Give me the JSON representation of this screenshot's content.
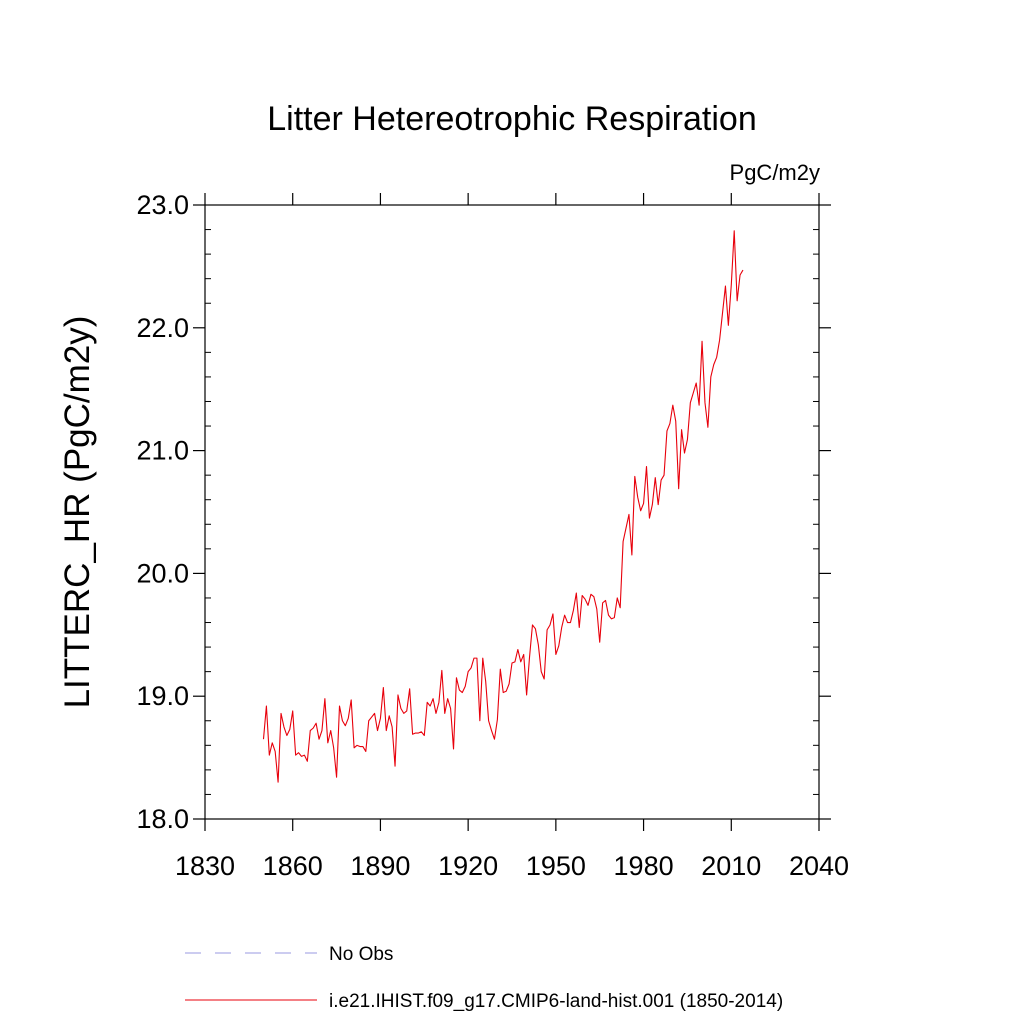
{
  "chart_data": {
    "type": "line",
    "title": "Litter Hetereotrophic Respiration",
    "units": "PgC/m2y",
    "xlabel": "",
    "ylabel": "LITTERC_HR  (PgC/m2y)",
    "xlim": [
      1830,
      2040
    ],
    "ylim": [
      18.0,
      23.0
    ],
    "xticks": [
      1830,
      1860,
      1890,
      1920,
      1950,
      1980,
      2010,
      2040
    ],
    "xtick_labels": [
      "1830",
      "1860",
      "1890",
      "1920",
      "1950",
      "1980",
      "2010",
      "2040"
    ],
    "yticks": [
      18.0,
      19.0,
      20.0,
      21.0,
      22.0,
      23.0
    ],
    "ytick_labels": [
      "18.0",
      "19.0",
      "20.0",
      "21.0",
      "22.0",
      "23.0"
    ],
    "grid": false,
    "legend": [
      {
        "label": "No Obs",
        "style": "dashed",
        "color": "#9a9ae0"
      },
      {
        "label": "i.e21.IHIST.f09_g17.CMIP6-land-hist.001 (1850-2014)",
        "style": "solid",
        "color": "#e8000b"
      }
    ],
    "series": [
      {
        "name": "i.e21.IHIST.f09_g17.CMIP6-land-hist.001 (1850-2014)",
        "color": "#e8000b",
        "x_start": 1850,
        "x_step": 1,
        "values": [
          18.65,
          18.92,
          18.52,
          18.62,
          18.55,
          18.3,
          18.86,
          18.75,
          18.68,
          18.73,
          18.88,
          18.52,
          18.54,
          18.51,
          18.52,
          18.47,
          18.72,
          18.74,
          18.78,
          18.65,
          18.72,
          18.98,
          18.62,
          18.72,
          18.58,
          18.34,
          18.92,
          18.8,
          18.76,
          18.82,
          18.97,
          18.58,
          18.6,
          18.59,
          18.59,
          18.55,
          18.8,
          18.83,
          18.86,
          18.72,
          18.82,
          19.07,
          18.72,
          18.84,
          18.75,
          18.43,
          19.01,
          18.9,
          18.86,
          18.88,
          19.06,
          18.69,
          18.7,
          18.7,
          18.71,
          18.68,
          18.95,
          18.92,
          18.98,
          18.86,
          18.95,
          19.21,
          18.86,
          18.98,
          18.9,
          18.57,
          19.15,
          19.05,
          19.03,
          19.08,
          19.2,
          19.23,
          19.31,
          19.31,
          18.8,
          19.31,
          19.12,
          18.8,
          18.72,
          18.65,
          18.81,
          19.22,
          19.03,
          19.04,
          19.1,
          19.27,
          19.28,
          19.38,
          19.28,
          19.34,
          19.01,
          19.32,
          19.58,
          19.55,
          19.42,
          19.2,
          19.14,
          19.54,
          19.58,
          19.67,
          19.34,
          19.41,
          19.56,
          19.66,
          19.6,
          19.6,
          19.7,
          19.84,
          19.56,
          19.82,
          19.79,
          19.74,
          19.83,
          19.81,
          19.71,
          19.44,
          19.76,
          19.78,
          19.66,
          19.63,
          19.64,
          19.8,
          19.72,
          20.26,
          20.37,
          20.48,
          20.15,
          20.79,
          20.62,
          20.51,
          20.57,
          20.87,
          20.45,
          20.56,
          20.78,
          20.56,
          20.76,
          20.8,
          21.16,
          21.22,
          21.37,
          21.24,
          20.69,
          21.17,
          20.98,
          21.09,
          21.39,
          21.47,
          21.55,
          21.37,
          21.89,
          21.39,
          21.19,
          21.6,
          21.7,
          21.76,
          21.9,
          22.12,
          22.34,
          22.02,
          22.35,
          22.79,
          22.22,
          22.43,
          22.47
        ]
      }
    ]
  }
}
